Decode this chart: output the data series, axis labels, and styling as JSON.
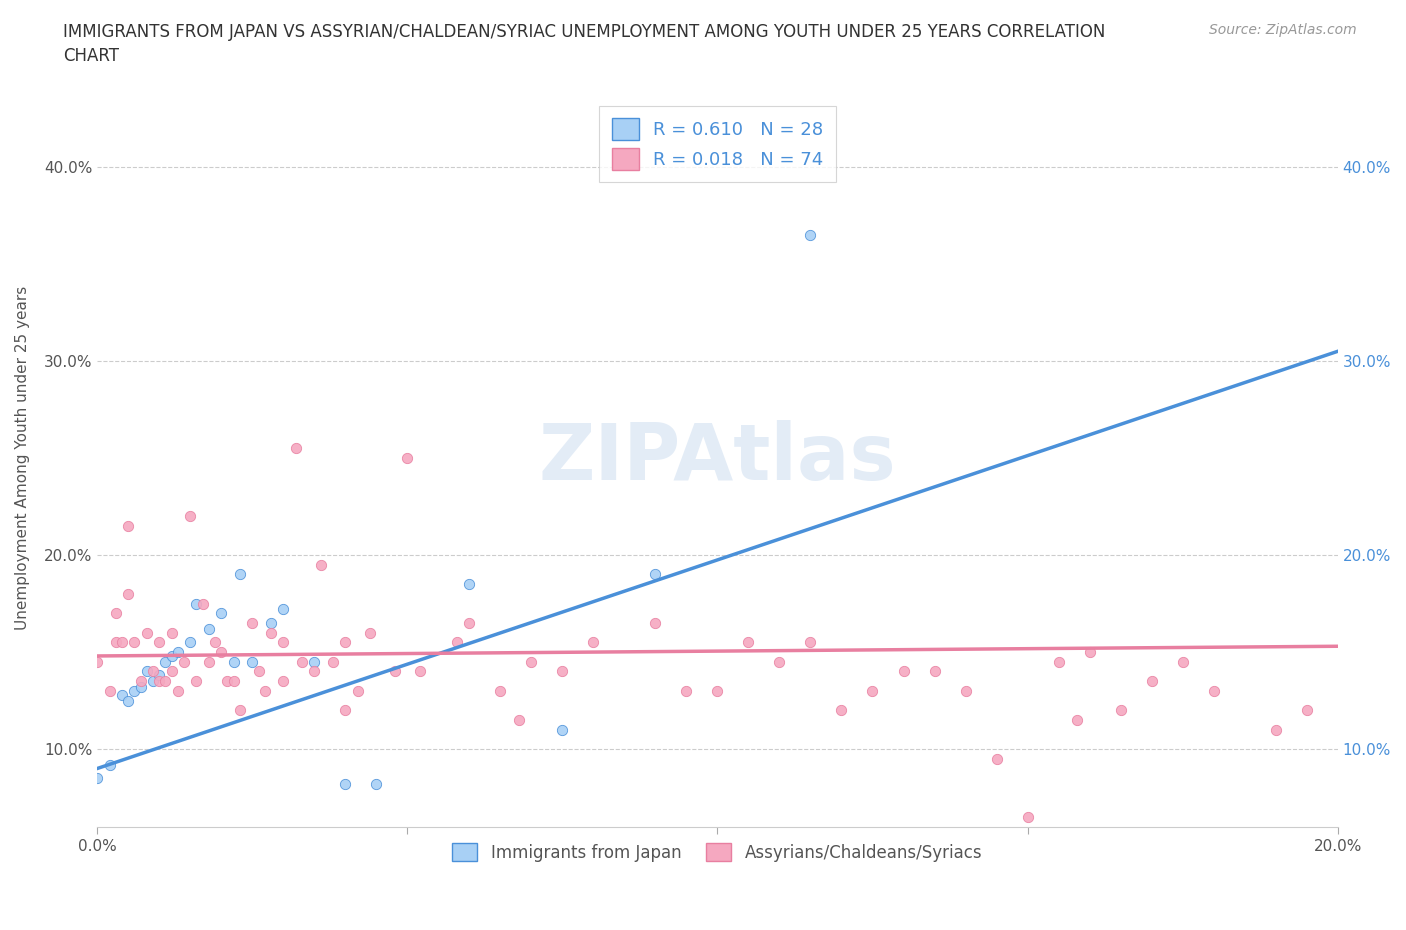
{
  "title": "IMMIGRANTS FROM JAPAN VS ASSYRIAN/CHALDEAN/SYRIAC UNEMPLOYMENT AMONG YOUTH UNDER 25 YEARS CORRELATION\nCHART",
  "source": "Source: ZipAtlas.com",
  "ylabel": "Unemployment Among Youth under 25 years",
  "xlim": [
    0.0,
    0.2
  ],
  "ylim": [
    0.06,
    0.44
  ],
  "yticks": [
    0.1,
    0.2,
    0.3,
    0.4
  ],
  "ytick_labels": [
    "10.0%",
    "20.0%",
    "30.0%",
    "40.0%"
  ],
  "xticks": [
    0.0,
    0.05,
    0.1,
    0.15,
    0.2
  ],
  "xtick_labels": [
    "0.0%",
    "",
    "",
    "",
    "20.0%"
  ],
  "R_japan": 0.61,
  "N_japan": 28,
  "R_assyrian": 0.018,
  "N_assyrian": 74,
  "color_japan": "#a8d0f5",
  "color_assyrian": "#f5a8c0",
  "line_color_japan": "#4a90d9",
  "line_color_assyrian": "#e87fa0",
  "left_tick_color": "#555555",
  "right_tick_color": "#4a90d9",
  "japan_line_x0": 0.0,
  "japan_line_y0": 0.09,
  "japan_line_x1": 0.2,
  "japan_line_y1": 0.305,
  "assyrian_line_x0": 0.0,
  "assyrian_line_y0": 0.148,
  "assyrian_line_x1": 0.2,
  "assyrian_line_y1": 0.153,
  "japan_scatter_x": [
    0.0,
    0.002,
    0.004,
    0.005,
    0.006,
    0.007,
    0.008,
    0.009,
    0.01,
    0.011,
    0.012,
    0.013,
    0.015,
    0.016,
    0.018,
    0.02,
    0.022,
    0.023,
    0.025,
    0.028,
    0.03,
    0.035,
    0.04,
    0.045,
    0.06,
    0.075,
    0.09,
    0.115
  ],
  "japan_scatter_y": [
    0.085,
    0.092,
    0.128,
    0.125,
    0.13,
    0.132,
    0.14,
    0.135,
    0.138,
    0.145,
    0.148,
    0.15,
    0.155,
    0.175,
    0.162,
    0.17,
    0.145,
    0.19,
    0.145,
    0.165,
    0.172,
    0.145,
    0.082,
    0.082,
    0.185,
    0.11,
    0.19,
    0.365
  ],
  "assyrian_scatter_x": [
    0.0,
    0.002,
    0.003,
    0.003,
    0.004,
    0.005,
    0.005,
    0.006,
    0.007,
    0.008,
    0.009,
    0.01,
    0.01,
    0.011,
    0.012,
    0.012,
    0.013,
    0.014,
    0.015,
    0.016,
    0.017,
    0.018,
    0.019,
    0.02,
    0.021,
    0.022,
    0.023,
    0.025,
    0.026,
    0.027,
    0.028,
    0.03,
    0.03,
    0.032,
    0.033,
    0.035,
    0.036,
    0.038,
    0.04,
    0.04,
    0.042,
    0.044,
    0.048,
    0.05,
    0.052,
    0.058,
    0.06,
    0.065,
    0.068,
    0.07,
    0.075,
    0.08,
    0.09,
    0.095,
    0.1,
    0.105,
    0.11,
    0.115,
    0.12,
    0.125,
    0.13,
    0.135,
    0.14,
    0.145,
    0.15,
    0.155,
    0.158,
    0.16,
    0.165,
    0.17,
    0.175,
    0.18,
    0.19,
    0.195
  ],
  "assyrian_scatter_y": [
    0.145,
    0.13,
    0.155,
    0.17,
    0.155,
    0.215,
    0.18,
    0.155,
    0.135,
    0.16,
    0.14,
    0.135,
    0.155,
    0.135,
    0.14,
    0.16,
    0.13,
    0.145,
    0.22,
    0.135,
    0.175,
    0.145,
    0.155,
    0.15,
    0.135,
    0.135,
    0.12,
    0.165,
    0.14,
    0.13,
    0.16,
    0.135,
    0.155,
    0.255,
    0.145,
    0.14,
    0.195,
    0.145,
    0.155,
    0.12,
    0.13,
    0.16,
    0.14,
    0.25,
    0.14,
    0.155,
    0.165,
    0.13,
    0.115,
    0.145,
    0.14,
    0.155,
    0.165,
    0.13,
    0.13,
    0.155,
    0.145,
    0.155,
    0.12,
    0.13,
    0.14,
    0.14,
    0.13,
    0.095,
    0.065,
    0.145,
    0.115,
    0.15,
    0.12,
    0.135,
    0.145,
    0.13,
    0.11,
    0.12
  ]
}
